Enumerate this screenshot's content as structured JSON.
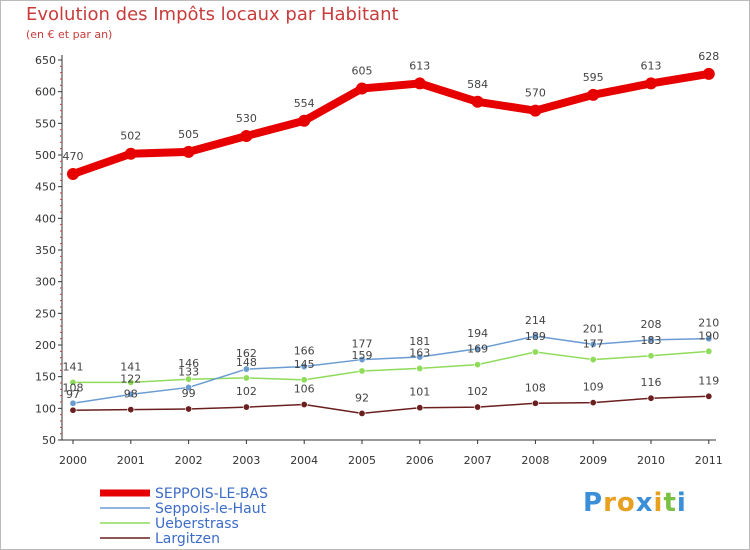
{
  "chart_data": {
    "type": "line",
    "title": "Evolution des Impôts locaux par Habitant",
    "subtitle": "(en € et par an)",
    "x": [
      "2000",
      "2001",
      "2002",
      "2003",
      "2004",
      "2005",
      "2006",
      "2007",
      "2008",
      "2009",
      "2010",
      "2011"
    ],
    "ylim": [
      50,
      650
    ],
    "yticks": [
      50,
      100,
      150,
      200,
      250,
      300,
      350,
      400,
      450,
      500,
      550,
      600,
      650
    ],
    "grid": false,
    "legend_position": "bottom-left",
    "series": [
      {
        "name": "SEPPOIS-LE-BAS",
        "color": "#e60000",
        "values": [
          470,
          502,
          505,
          530,
          554,
          605,
          613,
          584,
          570,
          595,
          613,
          628
        ],
        "labels": [
          "470",
          "502",
          "505",
          "530",
          "554",
          "605",
          "613",
          "584",
          "570",
          "595",
          "613",
          "628"
        ]
      },
      {
        "name": "Seppois-le-Haut",
        "color": "#6a9cd2",
        "values": [
          108,
          122,
          133,
          162,
          166,
          177,
          181,
          194,
          214,
          201,
          208,
          210
        ],
        "labels": [
          "108",
          "122",
          "133",
          "162",
          "166",
          "177",
          "181",
          "194",
          "214",
          "201",
          "208",
          "210"
        ]
      },
      {
        "name": "Ueberstrass",
        "color": "#8fdc5a",
        "values": [
          141,
          141,
          146,
          148,
          145,
          159,
          163,
          169,
          189,
          177,
          183,
          190
        ],
        "labels": [
          "141",
          "141",
          "146",
          "148",
          "145",
          "159",
          "163",
          "169",
          "189",
          "177",
          "183",
          "190"
        ]
      },
      {
        "name": "Largitzen",
        "color": "#6b1f1f",
        "values": [
          97,
          98,
          99,
          102,
          106,
          92,
          101,
          102,
          108,
          109,
          116,
          119
        ],
        "labels": [
          "97",
          "98",
          "99",
          "102",
          "106",
          "92",
          "101",
          "102",
          "108",
          "109",
          "116",
          "119"
        ]
      }
    ]
  },
  "logo": {
    "letters": [
      "P",
      "r",
      "o",
      "x",
      "i",
      "t",
      "i"
    ],
    "colors": [
      "#3a8fd8",
      "#e8a020",
      "#e8a020",
      "#3a8fd8",
      "#e8a020",
      "#7ac043",
      "#3a8fd8"
    ]
  }
}
